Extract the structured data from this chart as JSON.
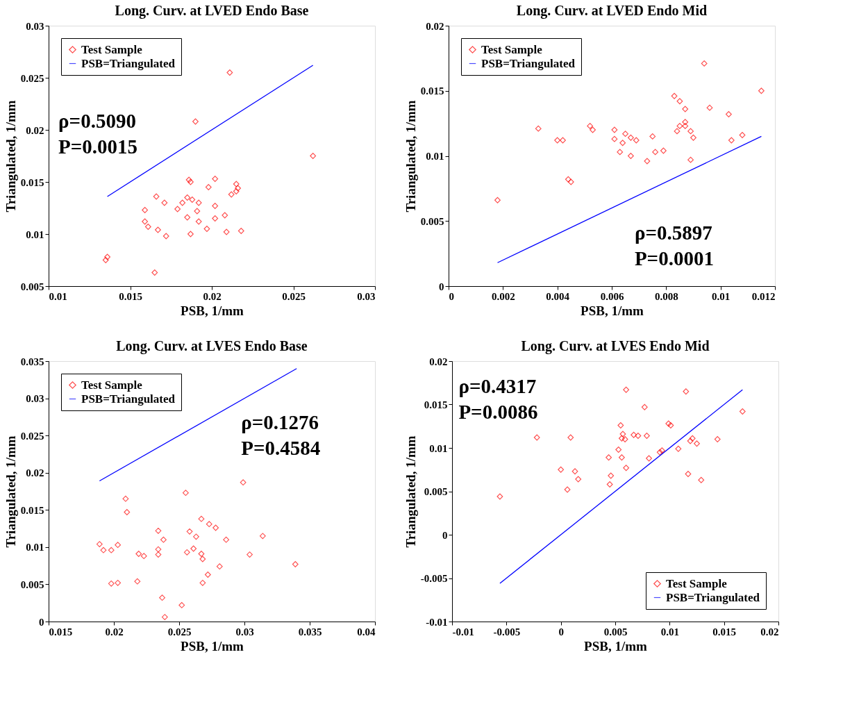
{
  "chart_data": [
    {
      "type": "scatter",
      "title": "Long. Curv. at LVED Endo Base",
      "xlabel": "PSB, 1/mm",
      "ylabel": "Triangulated, 1/mm",
      "xlim": [
        0.01,
        0.03
      ],
      "ylim": [
        0.005,
        0.03
      ],
      "xticks": [
        0.01,
        0.015,
        0.02,
        0.025,
        0.03
      ],
      "yticks": [
        0.005,
        0.01,
        0.015,
        0.02,
        0.025,
        0.03
      ],
      "legend": "top left",
      "grid": false,
      "annotations": [
        "ρ=0.5090",
        "P=0.0015"
      ],
      "series": [
        {
          "name": "Test Sample",
          "type": "scatter",
          "marker": "diamond",
          "color": "#ff0000",
          "x": [
            0.0211,
            0.019,
            0.0262,
            0.0186,
            0.0187,
            0.0202,
            0.0198,
            0.0215,
            0.0216,
            0.0215,
            0.0212,
            0.0166,
            0.0171,
            0.0182,
            0.0185,
            0.0188,
            0.0192,
            0.0179,
            0.0159,
            0.0202,
            0.0191,
            0.0208,
            0.0185,
            0.0202,
            0.0159,
            0.0161,
            0.0192,
            0.0167,
            0.0172,
            0.0187,
            0.0197,
            0.0209,
            0.0218,
            0.0136,
            0.0135,
            0.0165
          ],
          "values": [
            0.0255,
            0.0208,
            0.0175,
            0.0152,
            0.015,
            0.0153,
            0.0145,
            0.0148,
            0.0144,
            0.0141,
            0.0138,
            0.0136,
            0.013,
            0.013,
            0.0135,
            0.0133,
            0.013,
            0.0124,
            0.0123,
            0.0127,
            0.0122,
            0.0118,
            0.0116,
            0.0115,
            0.0112,
            0.0107,
            0.0112,
            0.0104,
            0.0098,
            0.01,
            0.0105,
            0.0102,
            0.0103,
            0.0078,
            0.0075,
            0.0063
          ]
        },
        {
          "name": "PSB=Triangulated",
          "type": "line",
          "marker": "none",
          "color": "#0000ff",
          "x": [
            0.0136,
            0.0262
          ],
          "values": [
            0.0136,
            0.0262
          ]
        }
      ]
    },
    {
      "type": "scatter",
      "title": "Long. Curv. at LVED Endo Mid",
      "xlabel": "PSB, 1/mm",
      "ylabel": "Triangulated, 1/mm",
      "xlim": [
        0,
        0.012
      ],
      "ylim": [
        0,
        0.02
      ],
      "xticks": [
        0,
        0.002,
        0.004,
        0.006,
        0.008,
        0.01,
        0.012
      ],
      "yticks": [
        0,
        0.005,
        0.01,
        0.015,
        0.02
      ],
      "legend": "top left",
      "grid": false,
      "annotations": [
        "ρ=0.5897",
        "P=0.0001"
      ],
      "series": [
        {
          "name": "Test Sample",
          "type": "scatter",
          "marker": "diamond",
          "color": "#ff0000",
          "x": [
            0.0094,
            0.0115,
            0.0083,
            0.0085,
            0.0087,
            0.0096,
            0.0103,
            0.0033,
            0.0052,
            0.0053,
            0.0061,
            0.0087,
            0.0085,
            0.0087,
            0.0084,
            0.0089,
            0.009,
            0.0065,
            0.0067,
            0.0061,
            0.0069,
            0.0075,
            0.004,
            0.0042,
            0.0064,
            0.0108,
            0.0104,
            0.0063,
            0.0067,
            0.0076,
            0.0079,
            0.0073,
            0.0089,
            0.0044,
            0.0045,
            0.0018
          ],
          "values": [
            0.0171,
            0.015,
            0.0146,
            0.0142,
            0.0136,
            0.0137,
            0.0132,
            0.0121,
            0.0123,
            0.012,
            0.012,
            0.0126,
            0.0123,
            0.0123,
            0.0119,
            0.0119,
            0.0114,
            0.0117,
            0.0114,
            0.0113,
            0.0112,
            0.0115,
            0.0112,
            0.0112,
            0.011,
            0.0116,
            0.0112,
            0.0103,
            0.01,
            0.0103,
            0.0104,
            0.0096,
            0.0097,
            0.0082,
            0.008,
            0.0066
          ]
        },
        {
          "name": "PSB=Triangulated",
          "type": "line",
          "marker": "none",
          "color": "#0000ff",
          "x": [
            0.0018,
            0.0115
          ],
          "values": [
            0.0018,
            0.0115
          ]
        }
      ]
    },
    {
      "type": "scatter",
      "title": "Long. Curv. at LVES Endo Base",
      "xlabel": "PSB, 1/mm",
      "ylabel": "Triangulated, 1/mm",
      "xlim": [
        0.015,
        0.04
      ],
      "ylim": [
        0,
        0.035
      ],
      "xticks": [
        0.015,
        0.02,
        0.025,
        0.03,
        0.035,
        0.04
      ],
      "yticks": [
        0,
        0.005,
        0.01,
        0.015,
        0.02,
        0.025,
        0.03,
        0.035
      ],
      "legend": "top left",
      "grid": false,
      "annotations": [
        "ρ=0.1276",
        "P=0.4584"
      ],
      "series": [
        {
          "name": "Test Sample",
          "type": "scatter",
          "marker": "diamond",
          "color": "#ff0000",
          "x": [
            0.0299,
            0.0255,
            0.0209,
            0.021,
            0.0267,
            0.0273,
            0.0278,
            0.0234,
            0.0258,
            0.0263,
            0.0314,
            0.0238,
            0.0286,
            0.0189,
            0.0203,
            0.0192,
            0.0198,
            0.0234,
            0.0261,
            0.0219,
            0.0223,
            0.0234,
            0.0256,
            0.0267,
            0.0268,
            0.0304,
            0.0281,
            0.0339,
            0.0272,
            0.0198,
            0.0203,
            0.0218,
            0.0268,
            0.0237,
            0.0252,
            0.0239
          ],
          "values": [
            0.0187,
            0.0173,
            0.0165,
            0.0147,
            0.0138,
            0.0131,
            0.0126,
            0.0122,
            0.0121,
            0.0114,
            0.0115,
            0.011,
            0.011,
            0.0104,
            0.0103,
            0.0096,
            0.0096,
            0.0097,
            0.0098,
            0.0091,
            0.0088,
            0.009,
            0.0093,
            0.0091,
            0.0084,
            0.009,
            0.0074,
            0.0077,
            0.0063,
            0.0051,
            0.0052,
            0.0054,
            0.0052,
            0.0032,
            0.0022,
            0.0006
          ]
        },
        {
          "name": "PSB=Triangulated",
          "type": "line",
          "marker": "none",
          "color": "#0000ff",
          "x": [
            0.0189,
            0.034
          ],
          "values": [
            0.0189,
            0.034
          ]
        }
      ]
    },
    {
      "type": "scatter",
      "title": "Long. Curv. at LVES Endo Mid",
      "xlabel": "PSB, 1/mm",
      "ylabel": "Triangulated, 1/mm",
      "xlim": [
        -0.01,
        0.02
      ],
      "ylim": [
        -0.01,
        0.02
      ],
      "xticks": [
        -0.01,
        -0.005,
        0,
        0.005,
        0.01,
        0.015,
        0.02
      ],
      "yticks": [
        -0.01,
        -0.005,
        0,
        0.005,
        0.01,
        0.015,
        0.02
      ],
      "legend": "bottom right",
      "grid": false,
      "annotations": [
        "ρ=0.4317",
        "P=0.0086"
      ],
      "series": [
        {
          "name": "Test Sample",
          "type": "scatter",
          "marker": "diamond",
          "color": "#ff0000",
          "x": [
            0.006,
            0.0115,
            0.0077,
            0.0167,
            0.0055,
            0.0099,
            0.0101,
            0.0057,
            0.0067,
            0.0071,
            0.0079,
            -0.0022,
            0.0009,
            0.0056,
            0.0059,
            0.0121,
            0.0119,
            0.0144,
            0.0125,
            0.0053,
            0.0108,
            0.0093,
            0.0091,
            0.0044,
            0.0056,
            0.0081,
            0.0,
            0.0013,
            0.006,
            0.0016,
            0.0046,
            0.0117,
            0.0129,
            0.0045,
            0.0006,
            -0.0056
          ],
          "values": [
            0.0167,
            0.0165,
            0.0147,
            0.0142,
            0.0126,
            0.0128,
            0.0126,
            0.0116,
            0.0115,
            0.0114,
            0.0114,
            0.0112,
            0.0112,
            0.0111,
            0.011,
            0.0111,
            0.0108,
            0.011,
            0.0105,
            0.0098,
            0.0099,
            0.0097,
            0.0095,
            0.0089,
            0.0089,
            0.0088,
            0.0075,
            0.0073,
            0.0077,
            0.0064,
            0.0068,
            0.007,
            0.0063,
            0.0058,
            0.0052,
            0.0044
          ]
        },
        {
          "name": "PSB=Triangulated",
          "type": "line",
          "marker": "none",
          "color": "#0000ff",
          "x": [
            -0.0056,
            0.0167
          ],
          "values": [
            -0.0056,
            0.0167
          ]
        }
      ]
    }
  ]
}
